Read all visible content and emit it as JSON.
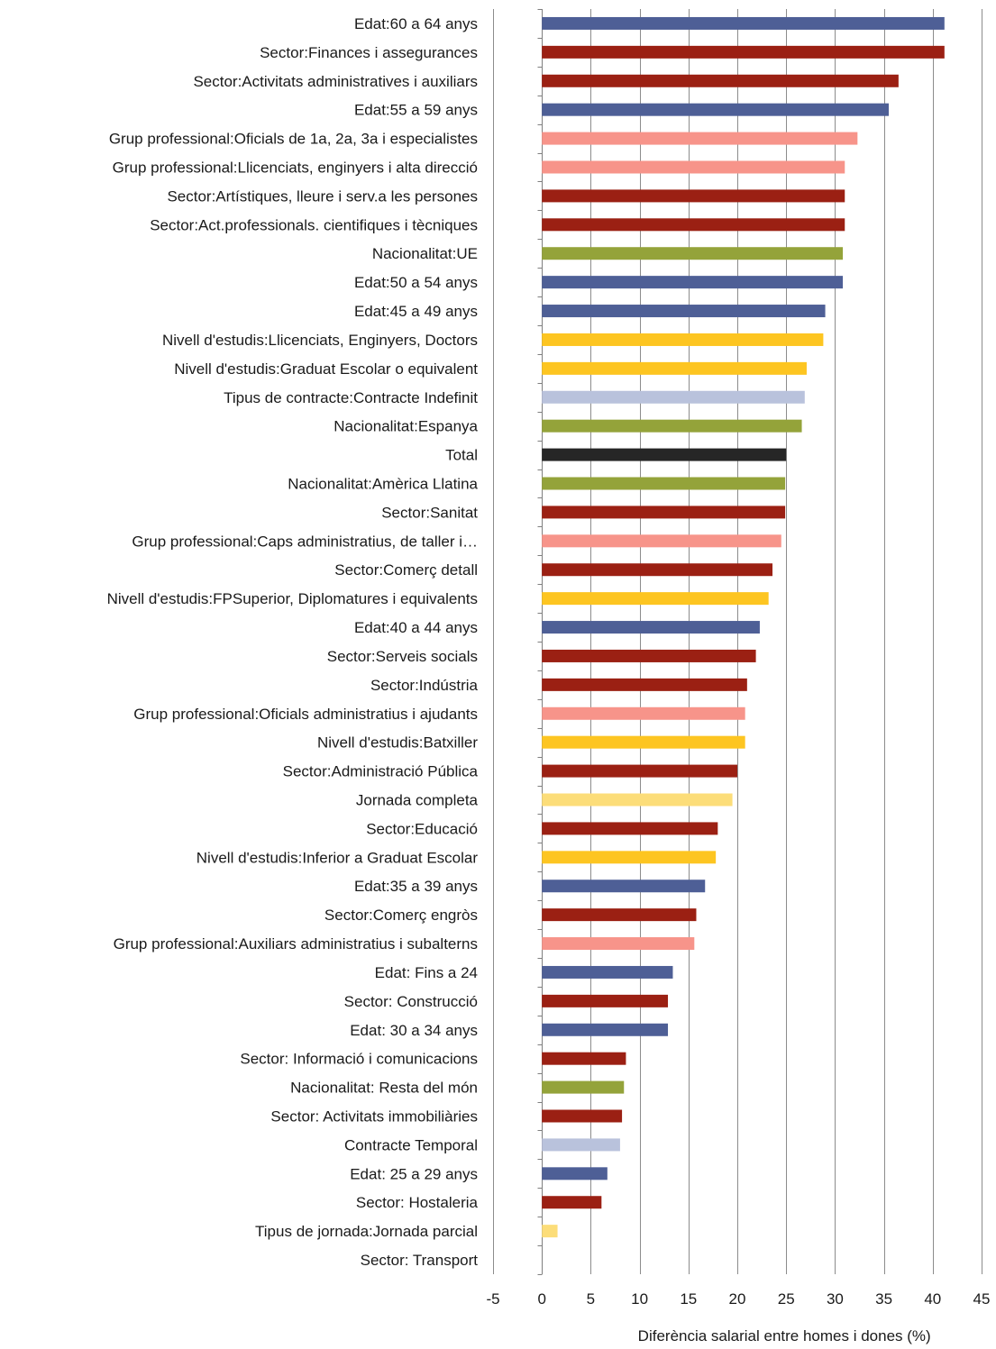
{
  "chart_data": {
    "type": "bar",
    "orientation": "horizontal",
    "xlabel": "Diferència salarial entre homes i dones (%)",
    "xlim": [
      -5,
      45
    ],
    "xticks": [
      -5,
      0,
      5,
      10,
      15,
      20,
      25,
      30,
      35,
      40,
      45
    ],
    "grid": "vertical",
    "colors": {
      "edat": "#4e5f96",
      "sector": "#9b2013",
      "grup": "#f7948a",
      "nacionalitat": "#94a33a",
      "estudis": "#fdc521",
      "contracte": "#b9c2dc",
      "total": "#262626",
      "jornada": "#fcdd79"
    },
    "bars": [
      {
        "label": "Edat:60 a 64 anys",
        "value": 41.2,
        "group": "edat"
      },
      {
        "label": "Sector:Finances i assegurances",
        "value": 41.2,
        "group": "sector"
      },
      {
        "label": "Sector:Activitats administratives i auxiliars",
        "value": 36.5,
        "group": "sector"
      },
      {
        "label": "Edat:55 a 59 anys",
        "value": 35.5,
        "group": "edat"
      },
      {
        "label": "Grup professional:Oficials de 1a, 2a, 3a i especialistes",
        "value": 32.3,
        "group": "grup"
      },
      {
        "label": "Grup professional:Llicenciats, enginyers i alta direcció",
        "value": 31.0,
        "group": "grup"
      },
      {
        "label": "Sector:Artístiques, lleure i serv.a les persones",
        "value": 31.0,
        "group": "sector"
      },
      {
        "label": "Sector:Act.professionals. cientifiques i tècniques",
        "value": 31.0,
        "group": "sector"
      },
      {
        "label": "Nacionalitat:UE",
        "value": 30.8,
        "group": "nacionalitat"
      },
      {
        "label": "Edat:50 a 54 anys",
        "value": 30.8,
        "group": "edat"
      },
      {
        "label": "Edat:45 a 49 anys",
        "value": 29.0,
        "group": "edat"
      },
      {
        "label": "Nivell d'estudis:Llicenciats, Enginyers, Doctors",
        "value": 28.8,
        "group": "estudis"
      },
      {
        "label": "Nivell d'estudis:Graduat Escolar o equivalent",
        "value": 27.1,
        "group": "estudis"
      },
      {
        "label": "Tipus de contracte:Contracte Indefinit",
        "value": 26.9,
        "group": "contracte"
      },
      {
        "label": "Nacionalitat:Espanya",
        "value": 26.6,
        "group": "nacionalitat"
      },
      {
        "label": "Total",
        "value": 25.0,
        "group": "total"
      },
      {
        "label": "Nacionalitat:Amèrica Llatina",
        "value": 24.9,
        "group": "nacionalitat"
      },
      {
        "label": "Sector:Sanitat",
        "value": 24.9,
        "group": "sector"
      },
      {
        "label": "Grup professional:Caps administratius, de taller i…",
        "value": 24.5,
        "group": "grup"
      },
      {
        "label": "Sector:Comerç detall",
        "value": 23.6,
        "group": "sector"
      },
      {
        "label": "Nivell d'estudis:FPSuperior, Diplomatures i equivalents",
        "value": 23.2,
        "group": "estudis"
      },
      {
        "label": "Edat:40 a 44 anys",
        "value": 22.3,
        "group": "edat"
      },
      {
        "label": "Sector:Serveis socials",
        "value": 21.9,
        "group": "sector"
      },
      {
        "label": "Sector:Indústria",
        "value": 21.0,
        "group": "sector"
      },
      {
        "label": "Grup professional:Oficials administratius i ajudants",
        "value": 20.8,
        "group": "grup"
      },
      {
        "label": "Nivell d'estudis:Batxiller",
        "value": 20.8,
        "group": "estudis"
      },
      {
        "label": "Sector:Administració Pública",
        "value": 20.0,
        "group": "sector"
      },
      {
        "label": "Jornada completa",
        "value": 19.5,
        "group": "jornada"
      },
      {
        "label": "Sector:Educació",
        "value": 18.0,
        "group": "sector"
      },
      {
        "label": "Nivell d'estudis:Inferior a Graduat Escolar",
        "value": 17.8,
        "group": "estudis"
      },
      {
        "label": "Edat:35 a 39 anys",
        "value": 16.7,
        "group": "edat"
      },
      {
        "label": "Sector:Comerç engròs",
        "value": 15.8,
        "group": "sector"
      },
      {
        "label": "Grup professional:Auxiliars administratius i subalterns",
        "value": 15.6,
        "group": "grup"
      },
      {
        "label": "Edat: Fins a 24",
        "value": 13.4,
        "group": "edat"
      },
      {
        "label": "Sector: Construcció",
        "value": 12.9,
        "group": "sector"
      },
      {
        "label": "Edat: 30 a 34 anys",
        "value": 12.9,
        "group": "edat"
      },
      {
        "label": "Sector: Informació i comunicacions",
        "value": 8.6,
        "group": "sector"
      },
      {
        "label": "Nacionalitat: Resta del món",
        "value": 8.4,
        "group": "nacionalitat"
      },
      {
        "label": "Sector: Activitats immobiliàries",
        "value": 8.2,
        "group": "sector"
      },
      {
        "label": "Contracte Temporal",
        "value": 8.0,
        "group": "contracte"
      },
      {
        "label": "Edat: 25 a 29 anys",
        "value": 6.7,
        "group": "edat"
      },
      {
        "label": "Sector: Hostaleria",
        "value": 6.1,
        "group": "sector"
      },
      {
        "label": "Tipus de jornada:Jornada parcial",
        "value": 1.6,
        "group": "jornada"
      },
      {
        "label": "Sector: Transport",
        "value": 0,
        "group": "sector"
      }
    ]
  }
}
